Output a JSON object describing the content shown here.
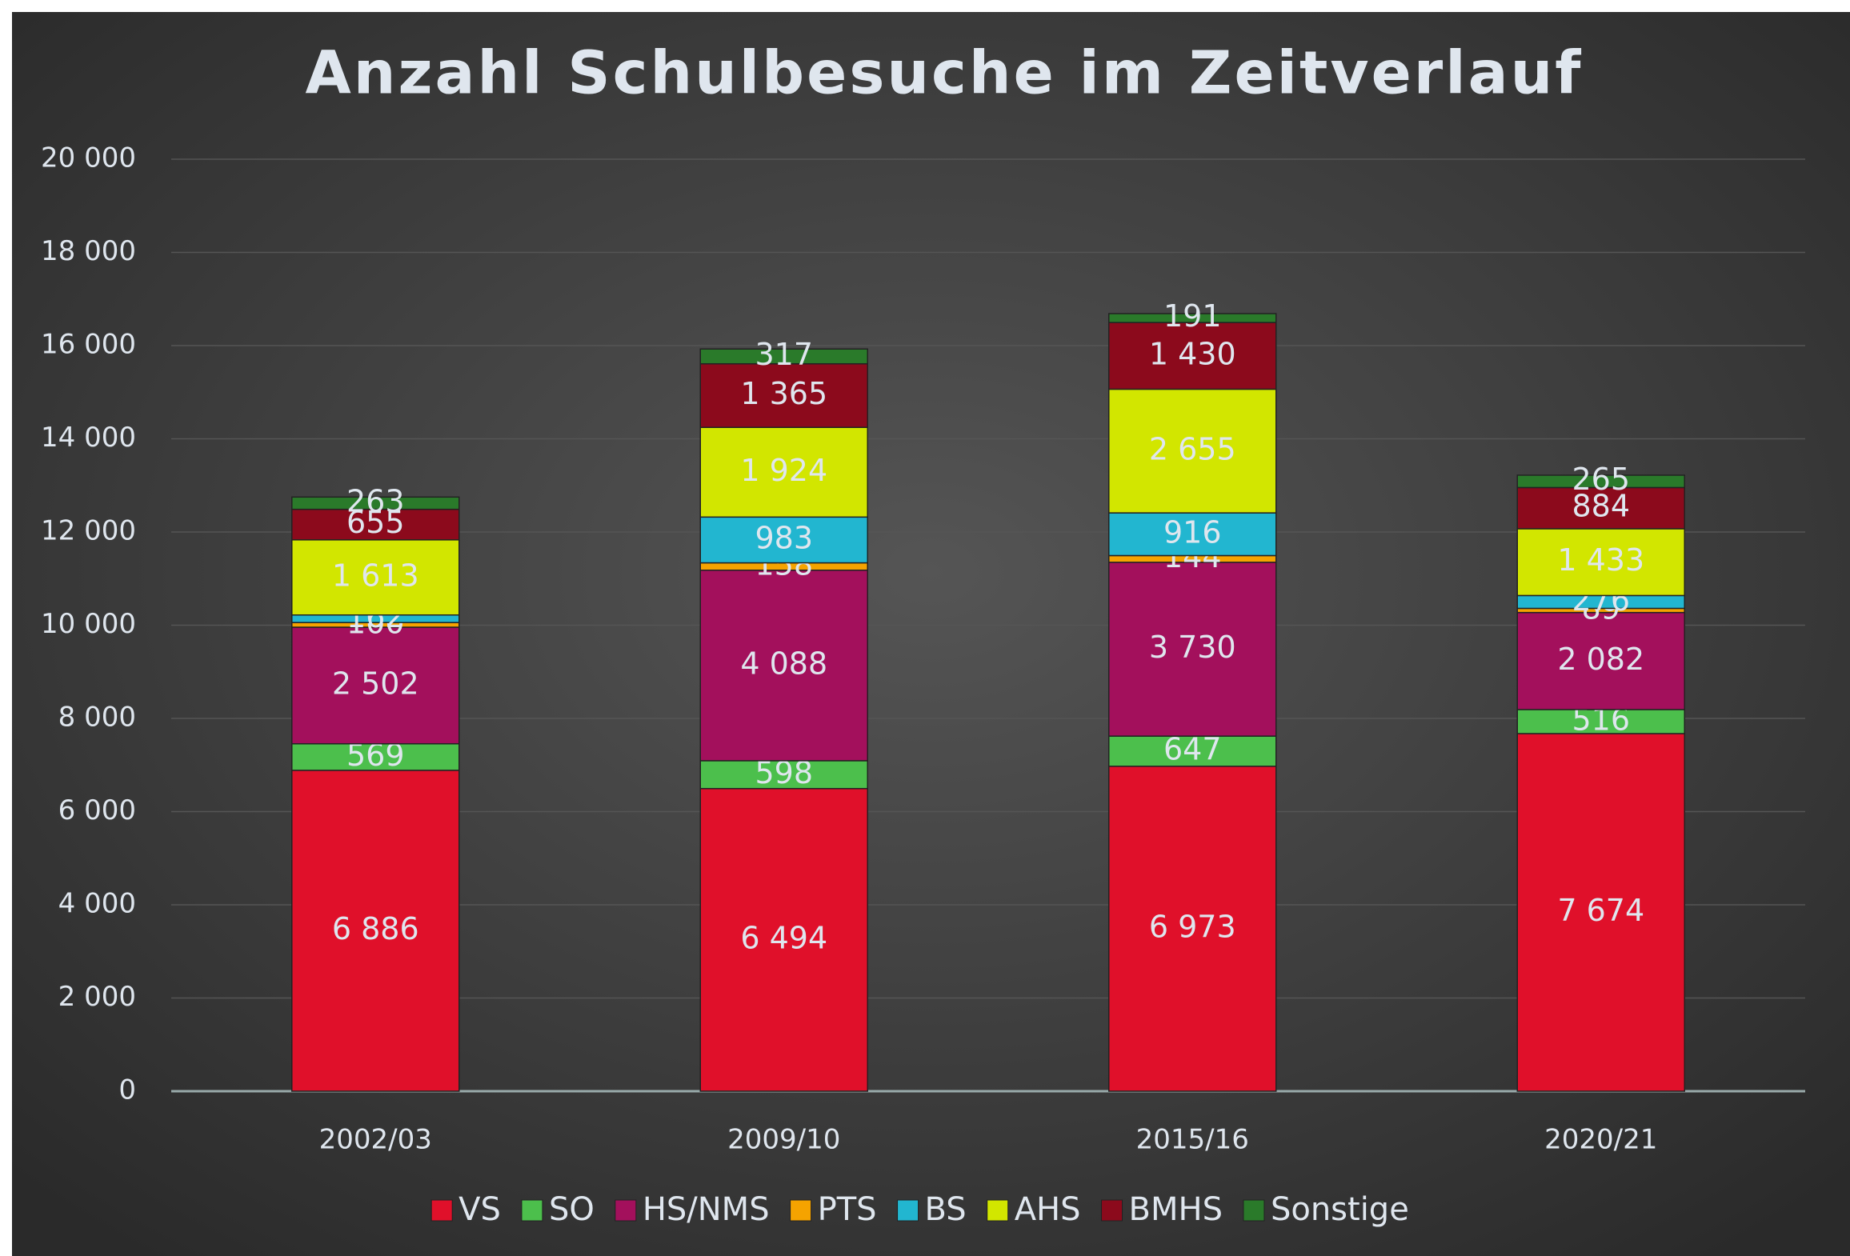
{
  "chart_data": {
    "type": "stacked_bar",
    "title": "Anzahl Schulbesuche im Zeitverlauf",
    "categories": [
      "2002/03",
      "2009/10",
      "2015/16",
      "2020/21"
    ],
    "series": [
      {
        "name": "VS",
        "color": "#e0102a",
        "values": [
          6886,
          6494,
          6973,
          7674
        ],
        "value_labels": [
          "6 886",
          "6 494",
          "6 973",
          "7 674"
        ]
      },
      {
        "name": "SO",
        "color": "#4cbf4c",
        "values": [
          569,
          598,
          647,
          516
        ]
      },
      {
        "name": "HS/NMS",
        "color": "#a3105c",
        "values": [
          2502,
          4088,
          3730,
          2082
        ],
        "value_labels": [
          "2 502",
          "4 088",
          "3 730",
          "2 082"
        ]
      },
      {
        "name": "PTS",
        "color": "#f5a300",
        "values": [
          100,
          158,
          144,
          89
        ]
      },
      {
        "name": "BS",
        "color": "#22b6d0",
        "values": [
          162,
          983,
          916,
          276
        ]
      },
      {
        "name": "AHS",
        "color": "#d2e600",
        "values": [
          1613,
          1924,
          2655,
          1433
        ],
        "value_labels": [
          "1 613",
          "1 924",
          "2 655",
          "1 433"
        ]
      },
      {
        "name": "BMHS",
        "color": "#8c0a1c",
        "values": [
          655,
          1365,
          1430,
          884
        ],
        "value_labels": [
          "655",
          "1 365",
          "1 430",
          "884"
        ]
      },
      {
        "name": "Sonstige",
        "color": "#2a7a2a",
        "values": [
          263,
          317,
          191,
          265
        ]
      }
    ],
    "ylim": [
      0,
      20000
    ],
    "yticks": [
      0,
      {
        "value": 2000,
        "label": "2 000"
      },
      {
        "value": 4000,
        "label": "4 000"
      },
      {
        "value": 6000,
        "label": "6 000"
      },
      {
        "value": 8000,
        "label": "8 000"
      },
      {
        "value": 10000,
        "label": "10 000"
      },
      {
        "value": 12000,
        "label": "12 000"
      },
      {
        "value": 14000,
        "label": "14 000"
      },
      {
        "value": 16000,
        "label": "16 000"
      },
      {
        "value": 18000,
        "label": "18 000"
      },
      {
        "value": 20000,
        "label": "20 000"
      }
    ],
    "grid": true,
    "legend": "bottom"
  }
}
